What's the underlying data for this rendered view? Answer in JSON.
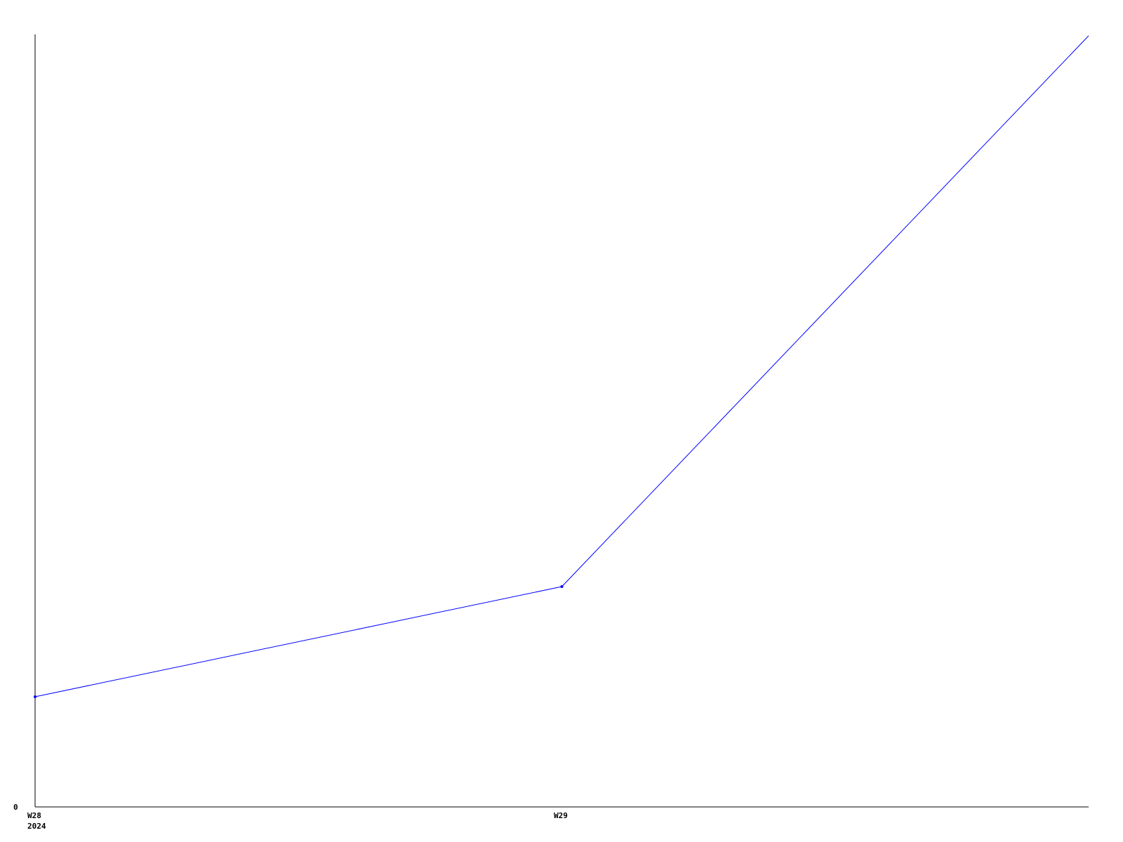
{
  "chart_data": {
    "type": "line",
    "title": "",
    "xlabel": "",
    "ylabel": "",
    "x": [
      0,
      1,
      2
    ],
    "x_tick_labels": [
      "W28",
      "W29"
    ],
    "x_year_label": "2024",
    "y_tick_labels": [
      "0"
    ],
    "ylim": [
      0,
      14
    ],
    "grid": false,
    "series": [
      {
        "values": [
          2,
          4,
          14
        ],
        "color": "#0000ff"
      }
    ]
  }
}
